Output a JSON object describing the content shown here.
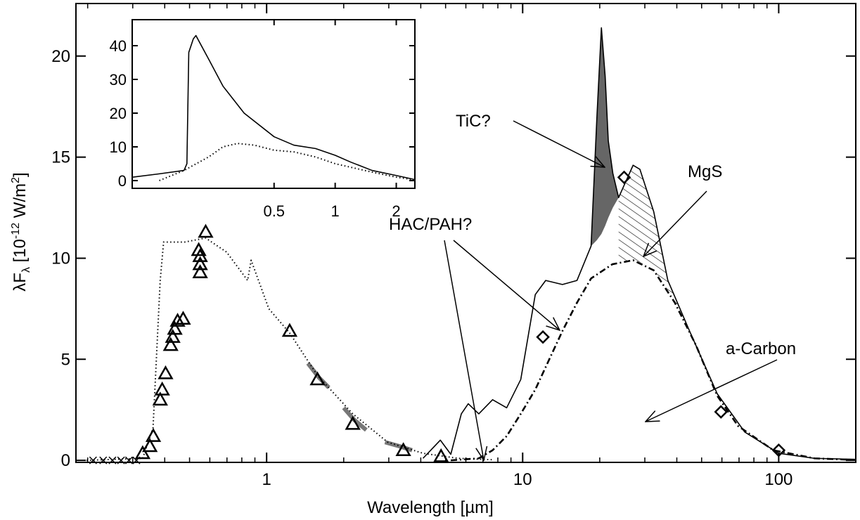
{
  "chart_data": [
    {
      "type": "line",
      "xlabel": "Wavelength [µm]",
      "ylabel": [
        "λF",
        "λ",
        " [10",
        "-12",
        " W/m",
        "2",
        "]"
      ],
      "xlog": true,
      "xlim": [
        0.18,
        200
      ],
      "ylim": [
        -0.1,
        22.6
      ],
      "xticks": [
        1,
        10,
        100
      ],
      "xminorticks": [
        0.2,
        0.3,
        0.4,
        0.5,
        0.6,
        0.7,
        0.8,
        0.9,
        2,
        3,
        4,
        5,
        6,
        7,
        8,
        9,
        20,
        30,
        40,
        50,
        60,
        70,
        80,
        90
      ],
      "yticks": [
        0,
        5,
        10,
        15,
        20
      ],
      "annotations": [
        "TiC?",
        "MgS",
        "HAC/PAH?",
        "a-Carbon"
      ],
      "fills": [
        {
          "name": "TiC",
          "style": "solid",
          "color": "#666666",
          "x": [
            18.5,
            19.5,
            20.3,
            21.0,
            21.6,
            22.5,
            23.7
          ],
          "upper": [
            10.6,
            17,
            21.4,
            19,
            15.8,
            14.2,
            13
          ],
          "lower": [
            10.6,
            10.9,
            11.2,
            11.6,
            12,
            12.5,
            13
          ]
        },
        {
          "name": "MgS",
          "style": "hatch",
          "color": "#000000",
          "x": [
            23.7,
            27,
            28.7,
            32.5,
            36.9,
            44.5
          ],
          "upper": [
            13,
            14.6,
            14.4,
            12.3,
            8.9,
            6.5
          ],
          "lower": [
            9.8,
            9.9,
            9.8,
            9.4,
            8.4,
            6.3
          ]
        }
      ],
      "series": [
        {
          "style": "thick",
          "color": "#777777",
          "x": [
            1.45,
            1.6,
            1.75,
            1.9,
            2.0,
            2.2,
            2.45,
            2.7,
            2.9,
            3.3,
            3.7
          ],
          "values": [
            4.8,
            4.1,
            3.6,
            null,
            2.6,
            2.0,
            1.5,
            null,
            0.9,
            0.7,
            0.5
          ]
        },
        {
          "style": "dotted",
          "color": "#000000",
          "x": [
            0.198,
            0.328,
            0.36,
            0.384,
            0.396,
            0.479,
            0.578,
            0.698,
            0.843,
            0.87,
            1.02,
            1.23,
            1.58,
            2.17,
            2.97,
            4.08,
            5.6,
            7.6
          ],
          "values": [
            0,
            0.1,
            1.6,
            8.9,
            10.8,
            10.8,
            11,
            10.3,
            8.9,
            9.9,
            7.5,
            6.3,
            4.2,
            2.3,
            0.9,
            0.35,
            0.1,
            0.03
          ]
        },
        {
          "style": "solid",
          "color": "#000000",
          "x": [
            4.08,
            4.77,
            5.24,
            5.76,
            6.13,
            6.74,
            7.63,
            8.66,
            9.83,
            11.2,
            12.3,
            14.3,
            16.3,
            18.5,
            19.5,
            20.3,
            21.0,
            21.6,
            22.5,
            23.7,
            27,
            28.7,
            32.5,
            36.9,
            44.5,
            57.5,
            73.7,
            100,
            138,
            199
          ],
          "values": [
            0.1,
            1,
            0.3,
            2.3,
            2.8,
            2.3,
            3,
            2.6,
            4,
            8.2,
            8.9,
            8.7,
            8.9,
            10.6,
            17,
            21.4,
            19,
            15.8,
            14.2,
            13,
            14.6,
            14.4,
            12.3,
            8.9,
            6.5,
            3.3,
            1.4,
            0.35,
            0.1,
            0.05
          ]
        },
        {
          "style": "dashdot",
          "color": "#000000",
          "x": [
            5.24,
            6.74,
            7.63,
            8.66,
            9.83,
            11.2,
            12.6,
            14.3,
            16.3,
            18.5,
            22.4,
            27,
            32.5,
            39.3,
            47.5,
            57.5,
            69.4,
            95.3,
            138,
            199
          ],
          "values": [
            0,
            0.1,
            0.5,
            1.2,
            2.3,
            3.5,
            4.9,
            6.4,
            7.8,
            9,
            9.7,
            9.9,
            9.4,
            7.8,
            5.7,
            3.2,
            1.7,
            0.5,
            0.1,
            0.02
          ]
        },
        {
          "style": "cross",
          "color": "#000000",
          "x": [
            0.21,
            0.23,
            0.25,
            0.27,
            0.29,
            0.31
          ],
          "values": [
            0,
            0,
            0,
            0,
            0,
            0
          ]
        },
        {
          "style": "triangle",
          "color": "#000000",
          "x": [
            0.328,
            0.35,
            0.361,
            0.384,
            0.391,
            0.403,
            0.422,
            0.43,
            0.438,
            0.449,
            0.472,
            0.543,
            0.55,
            0.55,
            0.55,
            0.578,
            1.23,
            1.58,
            2.17,
            3.42,
            4.8
          ],
          "values": [
            0.35,
            0.7,
            1.2,
            3,
            3.5,
            4.3,
            5.7,
            6.1,
            6.5,
            6.9,
            7,
            10.4,
            10.1,
            9.7,
            9.3,
            11.3,
            6.4,
            4,
            1.8,
            0.5,
            0.2
          ]
        },
        {
          "style": "diamond",
          "color": "#000000",
          "x": [
            12.0,
            24.9,
            59.5,
            100
          ],
          "values": [
            6.1,
            14,
            2.4,
            0.5
          ]
        }
      ]
    },
    {
      "type": "line",
      "xlog": true,
      "xlim": [
        0.1,
        2.47
      ],
      "ylim": [
        -2.3,
        47.7
      ],
      "xticks": [
        0.5,
        1,
        2
      ],
      "yticks": [
        0,
        10,
        20,
        30,
        40
      ],
      "series": [
        {
          "style": "solid",
          "color": "#000000",
          "x": [
            0.1,
            0.136,
            0.18,
            0.186,
            0.19,
            0.2,
            0.206,
            0.238,
            0.28,
            0.356,
            0.5,
            0.626,
            0.8,
            1,
            1.19,
            1.52,
            2,
            2.47
          ],
          "values": [
            1,
            2,
            3,
            5,
            38,
            42,
            43,
            36,
            28,
            20,
            13,
            10.5,
            9.5,
            7.5,
            5.5,
            3,
            1.5,
            0.3
          ]
        },
        {
          "style": "dotted",
          "color": "#000000",
          "x": [
            0.136,
            0.18,
            0.238,
            0.28,
            0.33,
            0.4,
            0.5,
            0.626,
            0.8,
            1,
            1.52,
            2,
            2.47
          ],
          "values": [
            0,
            3,
            7,
            10,
            11,
            10.5,
            9,
            8.5,
            7,
            5,
            2.5,
            1,
            0.2
          ]
        }
      ]
    }
  ]
}
